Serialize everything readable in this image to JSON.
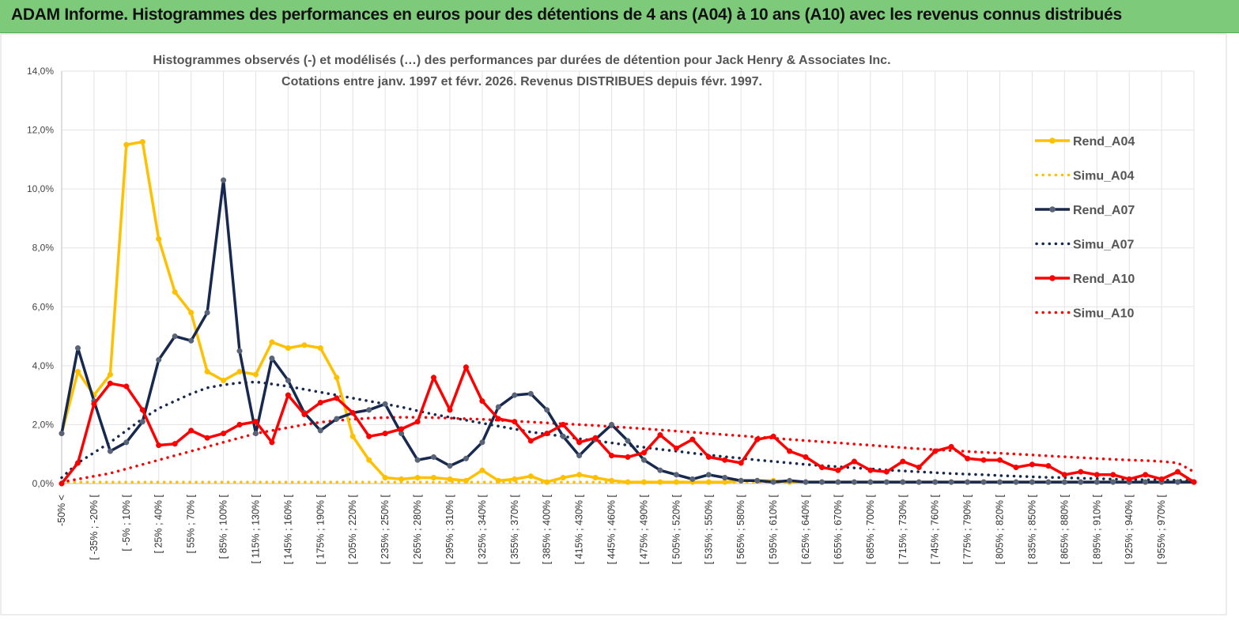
{
  "banner": {
    "title": "ADAM Informe. Histogrammes des performances en euros pour des détentions de 4 ans (A04) à 10 ans (A10) avec les revenus connus distribués"
  },
  "chart_data": {
    "type": "line",
    "title_line1": "Histogrammes observés (-) et modélisés (…) des performances par durées de détention pour Jack Henry & Associates Inc.",
    "title_line2": "Cotations entre janv. 1997 et févr. 2026. Revenus DISTRIBUES depuis févr. 1997.",
    "ylim": [
      0,
      14
    ],
    "yticks": [
      "0,0%",
      "2,0%",
      "4,0%",
      "6,0%",
      "8,0%",
      "10,0%",
      "12,0%",
      "14,0%"
    ],
    "x_labels": [
      "-50% <",
      "[ -35% ; -20% [",
      "[ -5% ; 10% [",
      "[ 25% ; 40% [",
      "[ 55% ; 70% [",
      "[ 85% ; 100% [",
      "[ 115% ; 130% [",
      "[ 145% ; 160% [",
      "[ 175% ; 190% [",
      "[ 205% ; 220% [",
      "[ 235% ; 250% [",
      "[ 265% ; 280% [",
      "[ 295% ; 310% [",
      "[ 325% ; 340% [",
      "[ 355% ; 370% [",
      "[ 385% ; 400% [",
      "[ 415% ; 430% [",
      "[ 445% ; 460% [",
      "[ 475% ; 490% [",
      "[ 505% ; 520% [",
      "[ 535% ; 550% [",
      "[ 565% ; 580% [",
      "[ 595% ; 610% [",
      "[ 625% ; 640% [",
      "[ 655% ; 670% [",
      "[ 685% ; 700% [",
      "[ 715% ; 730% [",
      "[ 745% ; 760% [",
      "[ 775% ; 790% [",
      "[ 805% ; 820% [",
      "[ 835% ; 850% [",
      "[ 865% ; 880% [",
      "[ 895% ; 910% [",
      "[ 925% ; 940% [",
      "[ 955% ; 970% ["
    ],
    "legend": {
      "position": "right"
    },
    "series": [
      {
        "name": "Rend_A04",
        "style": "solid",
        "color": "#ffc000",
        "values": [
          1.7,
          3.8,
          3.0,
          3.7,
          11.5,
          11.6,
          8.3,
          6.5,
          5.8,
          3.8,
          3.5,
          3.8,
          3.7,
          4.8,
          4.6,
          4.7,
          4.6,
          3.6,
          1.6,
          0.8,
          0.2,
          0.15,
          0.2,
          0.2,
          0.15,
          0.1,
          0.45,
          0.1,
          0.15,
          0.25,
          0.05,
          0.2,
          0.3,
          0.2,
          0.1,
          0.05,
          0.05,
          0.05,
          0.05,
          0.05,
          0.05,
          0.05,
          0.1,
          0.1,
          0.1,
          0.05,
          0.05,
          0.05,
          0.05,
          0.05,
          0.05,
          0.05,
          0.05,
          0.05,
          0.05,
          0.05,
          0.05,
          0.05,
          0.05,
          0.05,
          0.05,
          0.05,
          0.05,
          0.05,
          0.05,
          0.05,
          0.05,
          0.05,
          0.05,
          0.05,
          0.05
        ]
      },
      {
        "name": "Simu_A04",
        "style": "dotted",
        "color": "#ffc000",
        "values": [
          0.05,
          0.05,
          0.05,
          0.05,
          0.05,
          0.05,
          0.05,
          0.05,
          0.05,
          0.05,
          0.05,
          0.05,
          0.05,
          0.05,
          0.05,
          0.05,
          0.05,
          0.05,
          0.05,
          0.05,
          0.05,
          0.05,
          0.05,
          0.05,
          0.05,
          0.05,
          0.05,
          0.05,
          0.05,
          0.05,
          0.05,
          0.05,
          0.05,
          0.05,
          0.05,
          0.05,
          0.05,
          0.05,
          0.05,
          0.05,
          0.05,
          0.05,
          0.05,
          0.05,
          0.05,
          0.05,
          0.05,
          0.05,
          0.05,
          0.05,
          0.05,
          0.05,
          0.05,
          0.05,
          0.05,
          0.05,
          0.05,
          0.05,
          0.05,
          0.05,
          0.05,
          0.05,
          0.05,
          0.05,
          0.05,
          0.05,
          0.05,
          0.05,
          0.05,
          0.05,
          0.05
        ]
      },
      {
        "name": "Rend_A07",
        "style": "solid",
        "color": "#17294f",
        "values": [
          1.7,
          4.6,
          2.8,
          1.1,
          1.4,
          2.1,
          4.2,
          5.0,
          4.85,
          5.8,
          10.3,
          4.5,
          1.7,
          4.25,
          3.5,
          2.4,
          1.8,
          2.2,
          2.4,
          2.5,
          2.7,
          1.7,
          0.8,
          0.9,
          0.6,
          0.85,
          1.4,
          2.6,
          3.0,
          3.05,
          2.5,
          1.6,
          0.95,
          1.5,
          2.0,
          1.45,
          0.8,
          0.45,
          0.3,
          0.15,
          0.3,
          0.2,
          0.1,
          0.1,
          0.05,
          0.1,
          0.05,
          0.05,
          0.05,
          0.05,
          0.05,
          0.05,
          0.05,
          0.05,
          0.05,
          0.05,
          0.05,
          0.05,
          0.05,
          0.05,
          0.05,
          0.05,
          0.05,
          0.05,
          0.05,
          0.05,
          0.05,
          0.05,
          0.05,
          0.05,
          0.05
        ]
      },
      {
        "name": "Simu_A07",
        "style": "dotted",
        "color": "#17294f",
        "values": [
          0.2,
          0.7,
          1.05,
          1.4,
          1.8,
          2.2,
          2.55,
          2.8,
          3.05,
          3.25,
          3.35,
          3.42,
          3.45,
          3.38,
          3.3,
          3.2,
          3.1,
          3.0,
          2.9,
          2.8,
          2.7,
          2.6,
          2.47,
          2.35,
          2.25,
          2.15,
          2.05,
          1.95,
          1.85,
          1.75,
          1.68,
          1.6,
          1.52,
          1.45,
          1.38,
          1.3,
          1.23,
          1.16,
          1.1,
          1.03,
          0.97,
          0.91,
          0.86,
          0.8,
          0.75,
          0.7,
          0.65,
          0.61,
          0.57,
          0.53,
          0.5,
          0.46,
          0.43,
          0.4,
          0.37,
          0.34,
          0.32,
          0.3,
          0.27,
          0.25,
          0.23,
          0.21,
          0.2,
          0.18,
          0.17,
          0.15,
          0.14,
          0.13,
          0.12,
          0.11,
          0.1
        ]
      },
      {
        "name": "Rend_A10",
        "style": "solid",
        "color": "#ff0000",
        "values": [
          0.0,
          0.7,
          2.7,
          3.4,
          3.3,
          2.5,
          1.3,
          1.35,
          1.8,
          1.55,
          1.7,
          2.0,
          2.1,
          1.4,
          3.0,
          2.35,
          2.75,
          2.9,
          2.4,
          1.6,
          1.7,
          1.85,
          2.1,
          3.6,
          2.5,
          3.95,
          2.8,
          2.2,
          2.1,
          1.45,
          1.7,
          2.0,
          1.4,
          1.55,
          0.95,
          0.9,
          1.05,
          1.65,
          1.2,
          1.5,
          0.9,
          0.8,
          0.7,
          1.5,
          1.6,
          1.1,
          0.9,
          0.55,
          0.45,
          0.75,
          0.45,
          0.4,
          0.75,
          0.55,
          1.1,
          1.25,
          0.85,
          0.8,
          0.8,
          0.55,
          0.65,
          0.6,
          0.3,
          0.4,
          0.3,
          0.3,
          0.15,
          0.3,
          0.15,
          0.4,
          0.05
        ]
      },
      {
        "name": "Simu_A10",
        "style": "dotted",
        "color": "#ff0000",
        "values": [
          0.05,
          0.15,
          0.25,
          0.35,
          0.5,
          0.65,
          0.8,
          0.95,
          1.1,
          1.25,
          1.4,
          1.55,
          1.7,
          1.8,
          1.9,
          2.0,
          2.08,
          2.14,
          2.18,
          2.22,
          2.24,
          2.25,
          2.25,
          2.24,
          2.22,
          2.2,
          2.18,
          2.15,
          2.12,
          2.09,
          2.06,
          2.03,
          2.0,
          1.97,
          1.93,
          1.9,
          1.86,
          1.82,
          1.78,
          1.74,
          1.7,
          1.66,
          1.62,
          1.58,
          1.54,
          1.5,
          1.46,
          1.42,
          1.38,
          1.34,
          1.3,
          1.26,
          1.22,
          1.18,
          1.15,
          1.12,
          1.09,
          1.06,
          1.03,
          1.0,
          0.97,
          0.94,
          0.91,
          0.88,
          0.85,
          0.82,
          0.8,
          0.78,
          0.75,
          0.7,
          0.4
        ]
      }
    ]
  }
}
